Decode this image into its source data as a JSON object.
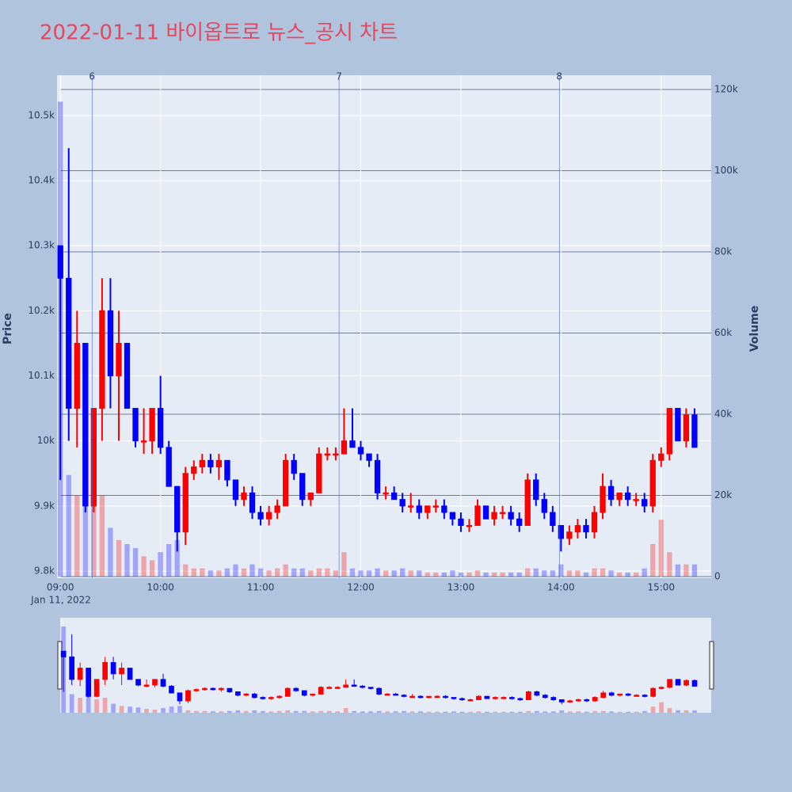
{
  "chart_data": {
    "type": "candlestick",
    "title": "2022-01-11 바이옵트로 뉴스_공시 차트",
    "y_title": "Price",
    "y2_title": "Volume",
    "x_date_label": "Jan 11, 2022",
    "increasing_color": "#ff0000",
    "decreasing_color": "#0000ff",
    "xlim": [
      "08:58",
      "15:30"
    ],
    "xticks": [
      "09:00",
      "10:00",
      "11:00",
      "12:00",
      "13:00",
      "14:00",
      "15:00"
    ],
    "ylim": [
      9789,
      10562
    ],
    "yticks": [
      {
        "value": 9800,
        "label": "9.8k"
      },
      {
        "value": 9900,
        "label": "9.9k"
      },
      {
        "value": 10000,
        "label": "10k"
      },
      {
        "value": 10100,
        "label": "10.1k"
      },
      {
        "value": 10200,
        "label": "10.2k"
      },
      {
        "value": 10300,
        "label": "10.3k"
      },
      {
        "value": 10400,
        "label": "10.4k"
      },
      {
        "value": 10500,
        "label": "10.5k"
      }
    ],
    "y2lim": [
      -400,
      123500
    ],
    "y2ticks": [
      0,
      {
        "value": 20000,
        "label": "20k"
      },
      {
        "value": 40000,
        "label": "40k"
      },
      {
        "value": 60000,
        "label": "60k"
      },
      {
        "value": 80000,
        "label": "80k"
      },
      {
        "value": 100000,
        "label": "100k"
      },
      {
        "value": 120000,
        "label": "120k"
      }
    ],
    "grid": true,
    "annotations": [
      {
        "x": "09:19",
        "text": "6"
      },
      {
        "x": "11:47",
        "text": "7"
      },
      {
        "x": "13:59",
        "text": "8"
      }
    ],
    "x": [
      "09:00",
      "09:05",
      "09:10",
      "09:15",
      "09:20",
      "09:25",
      "09:30",
      "09:35",
      "09:40",
      "09:45",
      "09:50",
      "09:55",
      "10:00",
      "10:05",
      "10:10",
      "10:15",
      "10:20",
      "10:25",
      "10:30",
      "10:35",
      "10:40",
      "10:45",
      "10:50",
      "10:55",
      "11:00",
      "11:05",
      "11:10",
      "11:15",
      "11:20",
      "11:25",
      "11:30",
      "11:35",
      "11:40",
      "11:45",
      "11:50",
      "11:55",
      "12:00",
      "12:05",
      "12:10",
      "12:15",
      "12:20",
      "12:25",
      "12:30",
      "12:35",
      "12:40",
      "12:45",
      "12:50",
      "12:55",
      "13:00",
      "13:05",
      "13:10",
      "13:15",
      "13:20",
      "13:25",
      "13:30",
      "13:35",
      "13:40",
      "13:45",
      "13:50",
      "13:55",
      "14:00",
      "14:05",
      "14:10",
      "14:15",
      "14:20",
      "14:25",
      "14:30",
      "14:35",
      "14:40",
      "14:45",
      "14:50",
      "14:55",
      "15:00",
      "15:05",
      "15:10",
      "15:15",
      "15:20"
    ],
    "open": [
      10300,
      10250,
      10050,
      10150,
      9900,
      10050,
      10200,
      10100,
      10150,
      10050,
      10000,
      10000,
      10050,
      9990,
      9930,
      9860,
      9950,
      9960,
      9970,
      9960,
      9970,
      9940,
      9910,
      9920,
      9890,
      9880,
      9890,
      9900,
      9970,
      9950,
      9910,
      9920,
      9980,
      9980,
      9980,
      10000,
      9990,
      9980,
      9970,
      9920,
      9920,
      9910,
      9900,
      9900,
      9890,
      9900,
      9900,
      9890,
      9880,
      9870,
      9870,
      9900,
      9880,
      9890,
      9890,
      9880,
      9870,
      9940,
      9910,
      9890,
      9870,
      9850,
      9860,
      9870,
      9860,
      9890,
      9930,
      9910,
      9920,
      9910,
      9910,
      9900,
      9970,
      9980,
      10050,
      10000,
      10040
    ],
    "high": [
      10300,
      10450,
      10200,
      10150,
      10050,
      10250,
      10250,
      10200,
      10150,
      10050,
      10050,
      10050,
      10100,
      10000,
      9930,
      9960,
      9970,
      9980,
      9980,
      9980,
      9970,
      9940,
      9930,
      9930,
      9900,
      9900,
      9910,
      9980,
      9980,
      9950,
      9920,
      9990,
      9990,
      9990,
      10050,
      10050,
      10000,
      9980,
      9980,
      9930,
      9930,
      9920,
      9920,
      9910,
      9900,
      9910,
      9910,
      9890,
      9890,
      9880,
      9910,
      9900,
      9900,
      9900,
      9900,
      9890,
      9950,
      9950,
      9920,
      9900,
      9870,
      9870,
      9880,
      9880,
      9900,
      9950,
      9940,
      9920,
      9930,
      9920,
      9920,
      9980,
      9990,
      10050,
      10050,
      10050,
      10050
    ],
    "low": [
      9940,
      10000,
      9990,
      9890,
      9890,
      10000,
      10050,
      10000,
      10050,
      9990,
      9980,
      9980,
      9980,
      9930,
      9830,
      9840,
      9940,
      9950,
      9950,
      9940,
      9930,
      9900,
      9900,
      9880,
      9870,
      9870,
      9880,
      9900,
      9940,
      9900,
      9900,
      9920,
      9970,
      9970,
      9980,
      9990,
      9970,
      9960,
      9910,
      9910,
      9910,
      9890,
      9890,
      9880,
      9880,
      9890,
      9880,
      9870,
      9860,
      9860,
      9870,
      9880,
      9870,
      9880,
      9870,
      9860,
      9870,
      9900,
      9880,
      9860,
      9830,
      9840,
      9850,
      9850,
      9850,
      9880,
      9900,
      9900,
      9900,
      9900,
      9890,
      9890,
      9960,
      9970,
      10000,
      9990,
      9990
    ],
    "close": [
      10250,
      10050,
      10150,
      9900,
      10050,
      10200,
      10100,
      10150,
      10050,
      10000,
      10000,
      10050,
      9990,
      9930,
      9860,
      9950,
      9960,
      9970,
      9960,
      9970,
      9940,
      9910,
      9920,
      9890,
      9880,
      9890,
      9900,
      9970,
      9950,
      9910,
      9920,
      9980,
      9980,
      9980,
      10000,
      9990,
      9980,
      9970,
      9920,
      9920,
      9910,
      9900,
      9900,
      9890,
      9900,
      9900,
      9890,
      9880,
      9870,
      9870,
      9900,
      9880,
      9890,
      9890,
      9880,
      9870,
      9940,
      9910,
      9890,
      9870,
      9850,
      9860,
      9870,
      9860,
      9890,
      9930,
      9910,
      9920,
      9910,
      9910,
      9900,
      9970,
      9980,
      10050,
      10000,
      10040,
      9990
    ],
    "volume": [
      117000,
      25000,
      20000,
      22000,
      18000,
      20000,
      12000,
      9000,
      8000,
      7000,
      5000,
      4000,
      6000,
      8000,
      9000,
      3000,
      2000,
      2000,
      1500,
      1500,
      2000,
      3000,
      2000,
      3000,
      2000,
      1500,
      2000,
      3000,
      2000,
      2000,
      1500,
      2000,
      2000,
      1500,
      6000,
      2000,
      1500,
      1500,
      2000,
      1500,
      1500,
      2000,
      1500,
      1500,
      1000,
      1000,
      1000,
      1500,
      1000,
      1000,
      1500,
      1000,
      1000,
      1000,
      1000,
      1000,
      2000,
      2000,
      1500,
      1500,
      3000,
      1500,
      1500,
      1000,
      2000,
      2000,
      1500,
      1000,
      1000,
      1000,
      2000,
      8000,
      14000,
      6000,
      3000,
      3000,
      3000
    ]
  }
}
